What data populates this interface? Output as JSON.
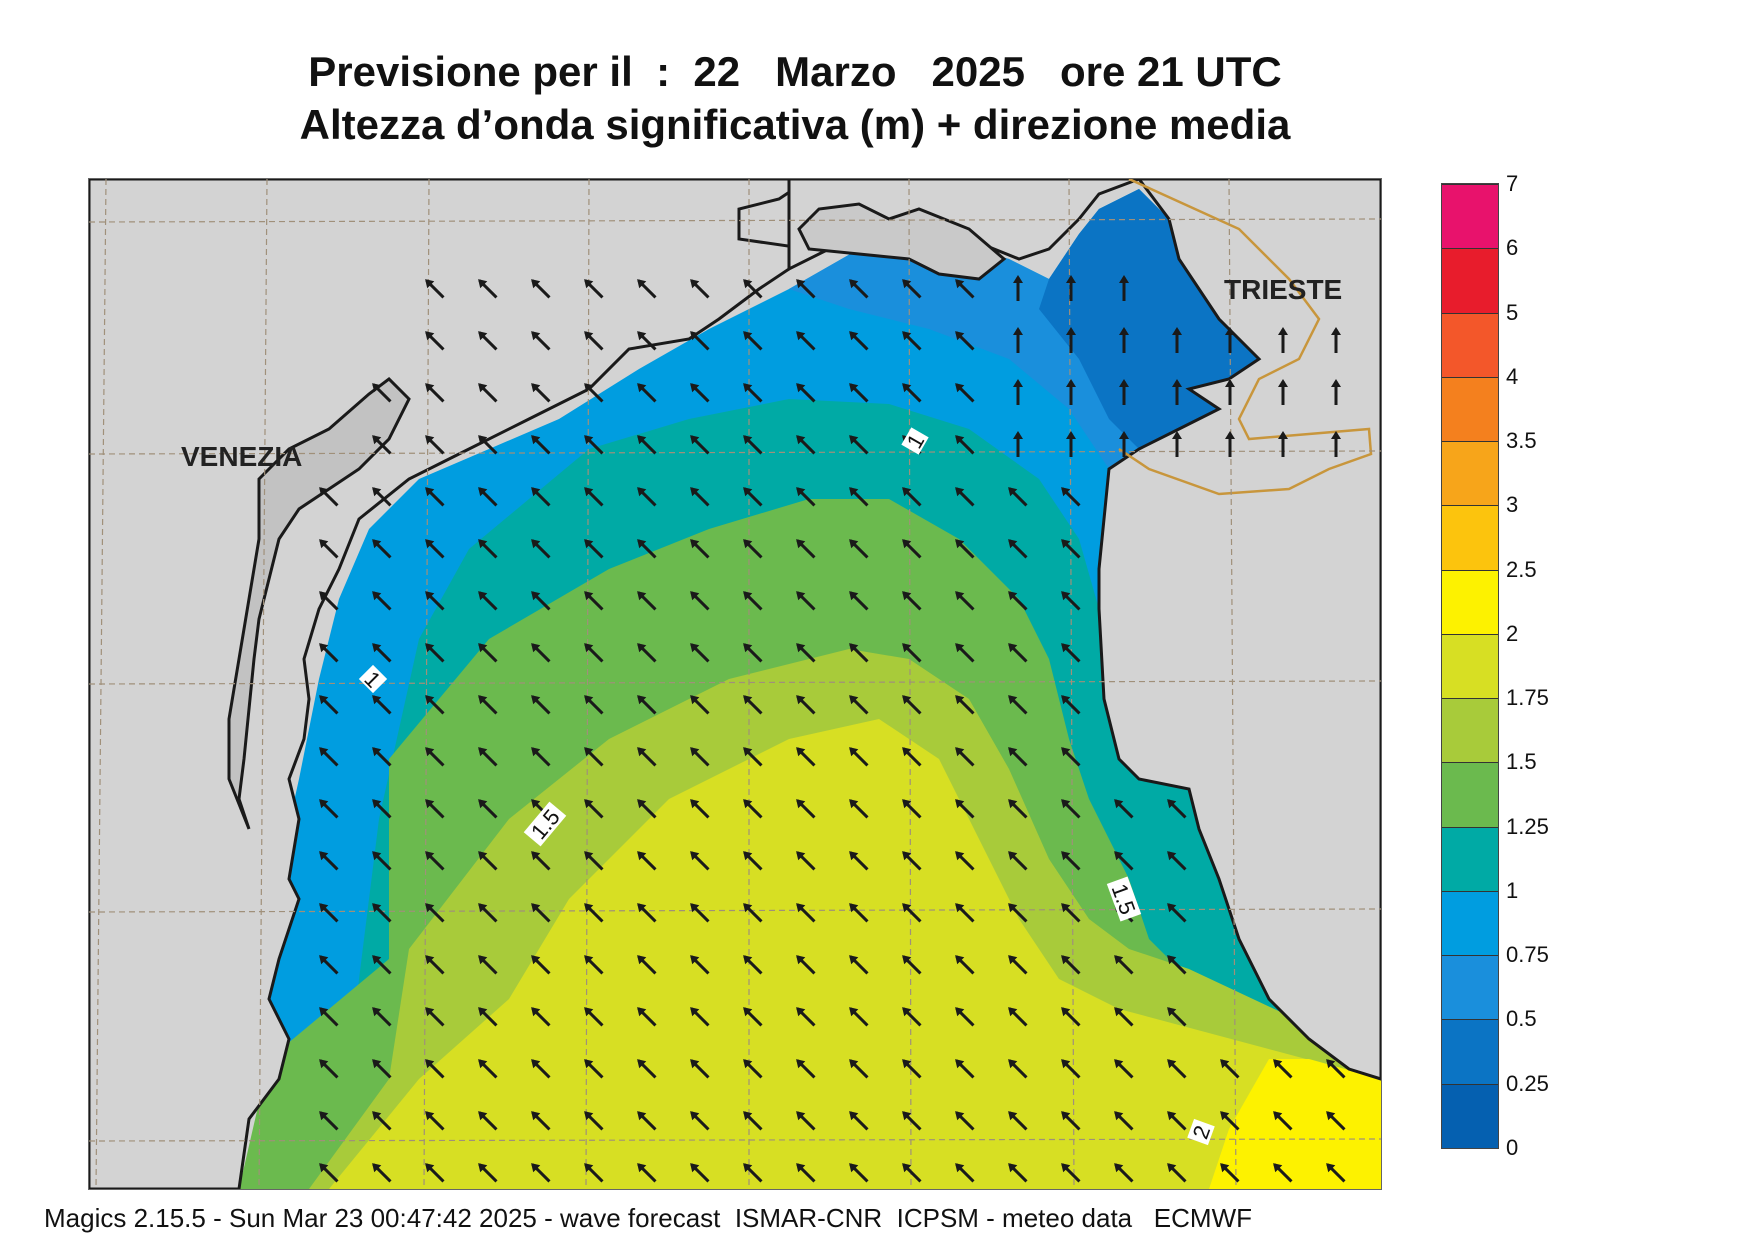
{
  "header": {
    "title_line1": "Previsione per il  :  22   Marzo   2025   ore 21 UTC",
    "title_line2": "Altezza d’onda significativa (m) + direzione media"
  },
  "map": {
    "cities": {
      "venezia": "VENEZIA",
      "trieste": "TRIESTE"
    },
    "contour_labels": [
      "1",
      "1",
      "1.5",
      "1.5",
      "2"
    ],
    "land_color": "#d3d3d3",
    "border_color": "#c8963c"
  },
  "legend": {
    "levels": [
      {
        "label": "7",
        "color": "#e8126c"
      },
      {
        "label": "6",
        "color": "#e81c2c"
      },
      {
        "label": "5",
        "color": "#f3572a"
      },
      {
        "label": "4",
        "color": "#f4801e"
      },
      {
        "label": "3.5",
        "color": "#f7a51a"
      },
      {
        "label": "3",
        "color": "#fcc40d"
      },
      {
        "label": "2.5",
        "color": "#fdf200"
      },
      {
        "label": "2",
        "color": "#d7df23"
      },
      {
        "label": "1.75",
        "color": "#a8cb3a"
      },
      {
        "label": "1.5",
        "color": "#6bba4e"
      },
      {
        "label": "1.25",
        "color": "#00aaa5"
      },
      {
        "label": "1",
        "color": "#009de0"
      },
      {
        "label": "0.75",
        "color": "#1a8fdc"
      },
      {
        "label": "0.5",
        "color": "#0b74c4"
      },
      {
        "label": "0.25",
        "color": "#0560b0"
      },
      {
        "label": "0",
        "color": ""
      }
    ]
  },
  "footer": {
    "text": "Magics 2.15.5 - Sun Mar 23 00:47:42 2025 - wave forecast  ISMAR-CNR  ICPSM - meteo data   ECMWF"
  }
}
